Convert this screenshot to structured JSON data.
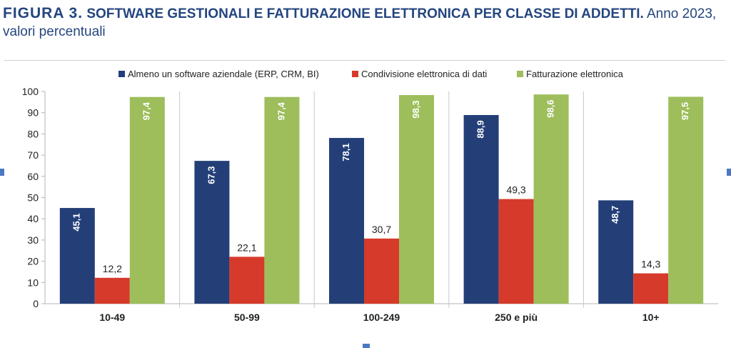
{
  "caption": {
    "figure_label": "FIGURA 3.",
    "title": "SOFTWARE GESTIONALI E FATTURAZIONE ELETTRONICA PER CLASSE DI ADDETTI.",
    "subtitle": "Anno 2023, valori percentuali"
  },
  "chart_data": {
    "type": "bar",
    "categories": [
      "10-49",
      "50-99",
      "100-249",
      "250 e più",
      "10+"
    ],
    "series": [
      {
        "name": "Almeno un software aziendale (ERP, CRM, BI)",
        "values": [
          45.1,
          67.3,
          78.1,
          88.9,
          48.7
        ],
        "color": "#243f78",
        "label_style": "inside-vertical"
      },
      {
        "name": "Condivisione elettronica di dati",
        "values": [
          12.2,
          22.1,
          30.7,
          49.3,
          14.3
        ],
        "color": "#d63a2a",
        "label_style": "above-horizontal"
      },
      {
        "name": "Fatturazione elettronica",
        "values": [
          97.4,
          97.4,
          98.3,
          98.6,
          97.5
        ],
        "color": "#9dbe5b",
        "label_style": "inside-vertical"
      }
    ],
    "ylim": [
      0,
      100
    ],
    "yticks": [
      0,
      10,
      20,
      30,
      40,
      50,
      60,
      70,
      80,
      90,
      100
    ],
    "decimal_separator": ",",
    "grid": "vertical separators between categories",
    "legend_position": "top-center",
    "xlabel": "",
    "ylabel": ""
  }
}
